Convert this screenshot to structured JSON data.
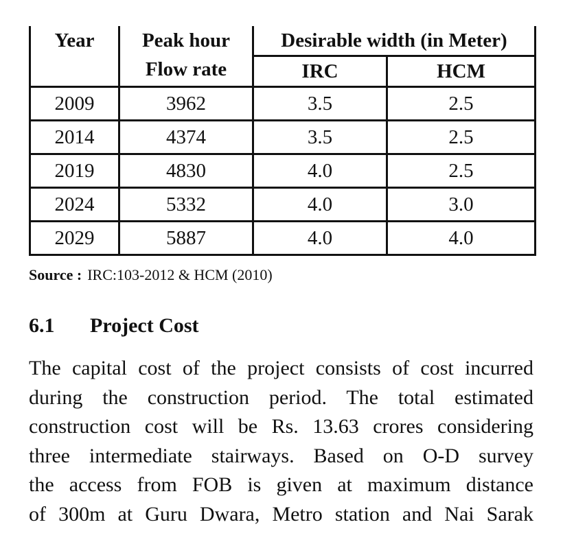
{
  "table": {
    "header": {
      "year": "Year",
      "flow": "Peak hour Flow rate",
      "width": "Desirable width (in Meter)",
      "irc": "IRC",
      "hcm": "HCM"
    },
    "rows": [
      [
        "2009",
        "3962",
        "3.5",
        "2.5"
      ],
      [
        "2014",
        "4374",
        "3.5",
        "2.5"
      ],
      [
        "2019",
        "4830",
        "4.0",
        "2.5"
      ],
      [
        "2024",
        "5332",
        "4.0",
        "3.0"
      ],
      [
        "2029",
        "5887",
        "4.0",
        "4.0"
      ]
    ]
  },
  "source": {
    "label": "Source :",
    "text": "IRC:103-2012 & HCM (2010)"
  },
  "section": {
    "number": "6.1",
    "title": "Project Cost"
  },
  "paragraph": [
    "The capital cost of the project consists of cost incurred",
    "during the construction period. The total estimated",
    "construction cost will be Rs. 13.63 crores considering",
    "three intermediate stairways. Based on O-D survey",
    "the access from FOB is given at maximum distance",
    "of 300m at Guru Dwara, Metro station and Nai Sarak"
  ]
}
